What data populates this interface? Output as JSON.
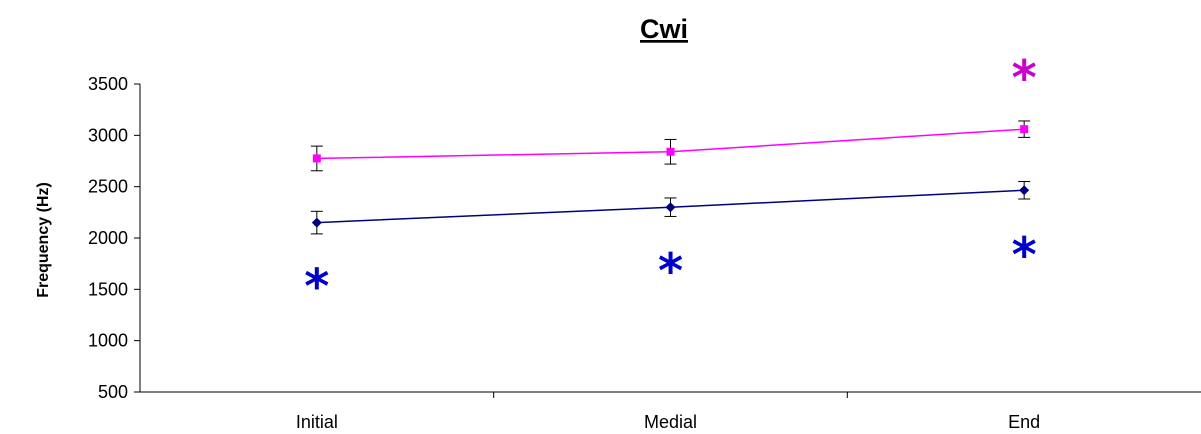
{
  "chart_data": {
    "type": "line",
    "title": "Cwi",
    "ylabel": "Frequency (Hz)",
    "xlabel": "",
    "categories": [
      "Initial",
      "Medial",
      "End"
    ],
    "ylim": [
      500,
      3500
    ],
    "yticks": [
      500,
      1000,
      1500,
      2000,
      2500,
      3000,
      3500
    ],
    "grid": false,
    "series": [
      {
        "values": [
          2775,
          2840,
          3060
        ],
        "errors": [
          120,
          120,
          80
        ],
        "color": "#ff00ff",
        "marker": "square"
      },
      {
        "values": [
          2150,
          2300,
          2465
        ],
        "errors": [
          110,
          90,
          85
        ],
        "color": "#000080",
        "marker": "diamond"
      }
    ],
    "annotations": [
      {
        "text": "*",
        "category": "Initial",
        "y": 1580,
        "color": "#0000cc"
      },
      {
        "text": "*",
        "category": "Medial",
        "y": 1730,
        "color": "#0000cc"
      },
      {
        "text": "*",
        "category": "End",
        "y": 1890,
        "color": "#0000cc"
      },
      {
        "text": "*",
        "category": "End",
        "y": 3610,
        "color": "#cc00cc"
      }
    ]
  }
}
